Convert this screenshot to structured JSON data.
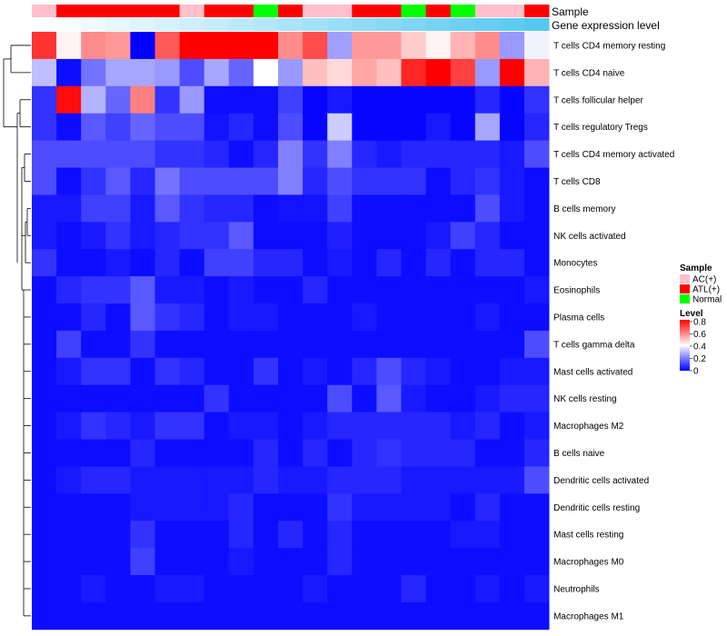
{
  "chart_data": {
    "type": "heatmap",
    "title": "",
    "annotation_labels": {
      "sample": "Sample",
      "gene_expression": "Gene expression level"
    },
    "sample_groups": [
      "AC(+)",
      "ATL(+)",
      "ATL(+)",
      "ATL(+)",
      "ATL(+)",
      "ATL(+)",
      "AC(+)",
      "ATL(+)",
      "ATL(+)",
      "Normal",
      "ATL(+)",
      "AC(+)",
      "AC(+)",
      "ATL(+)",
      "ATL(+)",
      "Normal",
      "ATL(+)",
      "Normal",
      "AC(+)",
      "AC(+)",
      "ATL(+)"
    ],
    "gene_expression_levels": [
      0.02,
      0.05,
      0.1,
      0.15,
      0.2,
      0.25,
      0.3,
      0.35,
      0.4,
      0.45,
      0.5,
      0.55,
      0.6,
      0.65,
      0.7,
      0.75,
      0.8,
      0.85,
      0.9,
      0.95,
      1.0
    ],
    "rows": [
      "T cells CD4 memory resting",
      "T cells CD4 naive",
      "T cells follicular helper",
      "T cells regulatory  Tregs",
      "T cells CD4 memory activated",
      "T cells CD8",
      "B cells memory",
      "NK cells activated",
      "Monocytes",
      "Eosinophils",
      "Plasma cells",
      "T cells gamma delta",
      "Mast cells activated",
      "NK cells resting",
      "Macrophages M2",
      "B cells naive",
      "Dendritic cells activated",
      "Dendritic cells resting",
      "Mast cells resting",
      "Macrophages M0",
      "Neutrophils",
      "Macrophages M1"
    ],
    "values": [
      [
        0.72,
        0.42,
        0.58,
        0.56,
        0.0,
        0.66,
        0.8,
        0.8,
        0.8,
        0.8,
        0.58,
        0.68,
        0.25,
        0.56,
        0.56,
        0.48,
        0.42,
        0.52,
        0.58,
        0.24,
        0.38
      ],
      [
        0.3,
        0.02,
        0.18,
        0.26,
        0.26,
        0.24,
        0.12,
        0.26,
        0.16,
        0.4,
        0.24,
        0.5,
        0.46,
        0.54,
        0.5,
        0.74,
        0.8,
        0.7,
        0.24,
        0.8,
        0.52
      ],
      [
        0.08,
        0.78,
        0.28,
        0.16,
        0.6,
        0.08,
        0.24,
        0.02,
        0.02,
        0.02,
        0.1,
        0.01,
        0.04,
        0.01,
        0.01,
        0.01,
        0.01,
        0.01,
        0.06,
        0.01,
        0.08
      ],
      [
        0.08,
        0.02,
        0.14,
        0.1,
        0.16,
        0.12,
        0.12,
        0.03,
        0.06,
        0.02,
        0.12,
        0.01,
        0.32,
        0.01,
        0.01,
        0.01,
        0.04,
        0.01,
        0.26,
        0.01,
        0.06
      ],
      [
        0.12,
        0.12,
        0.12,
        0.12,
        0.12,
        0.08,
        0.08,
        0.06,
        0.02,
        0.06,
        0.2,
        0.08,
        0.2,
        0.06,
        0.04,
        0.06,
        0.06,
        0.06,
        0.06,
        0.04,
        0.12
      ],
      [
        0.12,
        0.02,
        0.08,
        0.14,
        0.06,
        0.18,
        0.12,
        0.12,
        0.12,
        0.12,
        0.2,
        0.06,
        0.12,
        0.08,
        0.08,
        0.08,
        0.02,
        0.06,
        0.08,
        0.04,
        0.02
      ],
      [
        0.04,
        0.04,
        0.1,
        0.1,
        0.04,
        0.14,
        0.08,
        0.06,
        0.06,
        0.02,
        0.03,
        0.03,
        0.1,
        0.02,
        0.02,
        0.02,
        0.02,
        0.02,
        0.12,
        0.04,
        0.02
      ],
      [
        0.04,
        0.02,
        0.04,
        0.08,
        0.04,
        0.06,
        0.08,
        0.08,
        0.14,
        0.02,
        0.02,
        0.02,
        0.05,
        0.02,
        0.02,
        0.02,
        0.04,
        0.1,
        0.06,
        0.02,
        0.02
      ],
      [
        0.08,
        0.02,
        0.02,
        0.04,
        0.02,
        0.06,
        0.02,
        0.1,
        0.1,
        0.06,
        0.06,
        0.02,
        0.04,
        0.02,
        0.06,
        0.02,
        0.06,
        0.02,
        0.06,
        0.06,
        0.02
      ],
      [
        0.02,
        0.06,
        0.08,
        0.08,
        0.14,
        0.04,
        0.04,
        0.02,
        0.04,
        0.02,
        0.02,
        0.06,
        0.02,
        0.02,
        0.02,
        0.02,
        0.02,
        0.02,
        0.02,
        0.02,
        0.04
      ],
      [
        0.02,
        0.02,
        0.06,
        0.02,
        0.14,
        0.08,
        0.06,
        0.02,
        0.04,
        0.04,
        0.02,
        0.02,
        0.02,
        0.04,
        0.02,
        0.02,
        0.02,
        0.02,
        0.04,
        0.02,
        0.02
      ],
      [
        0.02,
        0.1,
        0.02,
        0.02,
        0.08,
        0.02,
        0.02,
        0.02,
        0.02,
        0.02,
        0.02,
        0.02,
        0.02,
        0.02,
        0.02,
        0.02,
        0.02,
        0.02,
        0.02,
        0.02,
        0.12
      ],
      [
        0.02,
        0.04,
        0.08,
        0.08,
        0.02,
        0.08,
        0.06,
        0.02,
        0.02,
        0.08,
        0.02,
        0.04,
        0.02,
        0.06,
        0.12,
        0.06,
        0.04,
        0.02,
        0.02,
        0.04,
        0.04
      ],
      [
        0.02,
        0.02,
        0.02,
        0.02,
        0.02,
        0.02,
        0.02,
        0.08,
        0.02,
        0.02,
        0.02,
        0.02,
        0.12,
        0.02,
        0.14,
        0.04,
        0.02,
        0.02,
        0.04,
        0.06,
        0.06
      ],
      [
        0.02,
        0.04,
        0.08,
        0.06,
        0.04,
        0.08,
        0.08,
        0.02,
        0.04,
        0.04,
        0.02,
        0.04,
        0.06,
        0.06,
        0.06,
        0.06,
        0.06,
        0.04,
        0.06,
        0.02,
        0.04
      ],
      [
        0.02,
        0.02,
        0.02,
        0.02,
        0.06,
        0.02,
        0.02,
        0.02,
        0.02,
        0.06,
        0.02,
        0.06,
        0.02,
        0.06,
        0.08,
        0.06,
        0.06,
        0.06,
        0.02,
        0.02,
        0.06
      ],
      [
        0.02,
        0.04,
        0.06,
        0.06,
        0.04,
        0.04,
        0.04,
        0.04,
        0.04,
        0.06,
        0.04,
        0.04,
        0.06,
        0.06,
        0.06,
        0.04,
        0.04,
        0.04,
        0.04,
        0.04,
        0.12
      ],
      [
        0.02,
        0.02,
        0.02,
        0.02,
        0.04,
        0.04,
        0.04,
        0.04,
        0.06,
        0.02,
        0.02,
        0.02,
        0.08,
        0.04,
        0.04,
        0.04,
        0.04,
        0.02,
        0.06,
        0.02,
        0.02
      ],
      [
        0.02,
        0.02,
        0.02,
        0.02,
        0.08,
        0.02,
        0.02,
        0.02,
        0.06,
        0.02,
        0.06,
        0.02,
        0.06,
        0.02,
        0.02,
        0.02,
        0.02,
        0.04,
        0.04,
        0.02,
        0.02
      ],
      [
        0.02,
        0.02,
        0.02,
        0.02,
        0.1,
        0.02,
        0.02,
        0.02,
        0.04,
        0.02,
        0.02,
        0.02,
        0.06,
        0.02,
        0.02,
        0.02,
        0.02,
        0.02,
        0.02,
        0.02,
        0.02
      ],
      [
        0.02,
        0.02,
        0.04,
        0.02,
        0.02,
        0.04,
        0.04,
        0.02,
        0.02,
        0.02,
        0.02,
        0.04,
        0.02,
        0.02,
        0.02,
        0.06,
        0.02,
        0.02,
        0.04,
        0.02,
        0.04
      ],
      [
        0.02,
        0.02,
        0.02,
        0.02,
        0.02,
        0.02,
        0.02,
        0.02,
        0.02,
        0.02,
        0.02,
        0.02,
        0.02,
        0.02,
        0.02,
        0.02,
        0.02,
        0.02,
        0.02,
        0.02,
        0.02
      ]
    ],
    "legend": {
      "sample_title": "Sample",
      "sample_entries": [
        {
          "label": "AC(+)",
          "color": "#ffc0cb"
        },
        {
          "label": "ATL(+)",
          "color": "#ff0000"
        },
        {
          "label": "Normal",
          "color": "#00ff00"
        }
      ],
      "level_title": "Level",
      "level_ticks": [
        "0.8",
        "0.6",
        "0.4",
        "0.2",
        "0"
      ],
      "level_range": [
        0,
        0.8
      ]
    },
    "color_scale": {
      "low": "#0000ff",
      "mid": "#ffffff",
      "high": "#ff0000",
      "mid_value": 0.4
    },
    "gene_expression_color": "#56c8f0",
    "dendrogram": "rows"
  }
}
